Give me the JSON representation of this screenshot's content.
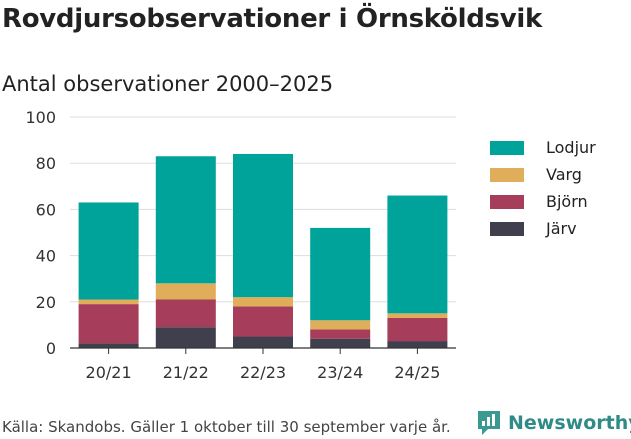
{
  "title": "Rovdjursobservationer i Örnsköldsvik",
  "subtitle": "Antal observationer 2000–2025",
  "footer": "Källa: Skandobs. Gäller 1 oktober till 30 september varje år.",
  "brand": {
    "name": "Newsworthy",
    "icon": "newsworthy-logo-icon",
    "color": "#3a9a92"
  },
  "chart_data": {
    "type": "bar",
    "stacked": true,
    "title": "Rovdjursobservationer i Örnsköldsvik",
    "subtitle": "Antal observationer 2000–2025",
    "xlabel": "",
    "ylabel": "",
    "ylim": [
      0,
      100
    ],
    "yticks": [
      0,
      20,
      40,
      60,
      80,
      100
    ],
    "categories": [
      "20/21",
      "21/22",
      "22/23",
      "23/24",
      "24/25"
    ],
    "series": [
      {
        "name": "Järv",
        "color": "#3f3f4e",
        "values": [
          2,
          9,
          5,
          4,
          3
        ]
      },
      {
        "name": "Björn",
        "color": "#a63e5b",
        "values": [
          17,
          12,
          13,
          4,
          10
        ]
      },
      {
        "name": "Varg",
        "color": "#e0ae5b",
        "values": [
          2,
          7,
          4,
          4,
          2
        ]
      },
      {
        "name": "Lodjur",
        "color": "#00a39a",
        "values": [
          42,
          55,
          62,
          40,
          51
        ]
      }
    ],
    "legend_order": [
      "Lodjur",
      "Varg",
      "Björn",
      "Järv"
    ],
    "legend_position": "right",
    "grid": true
  }
}
